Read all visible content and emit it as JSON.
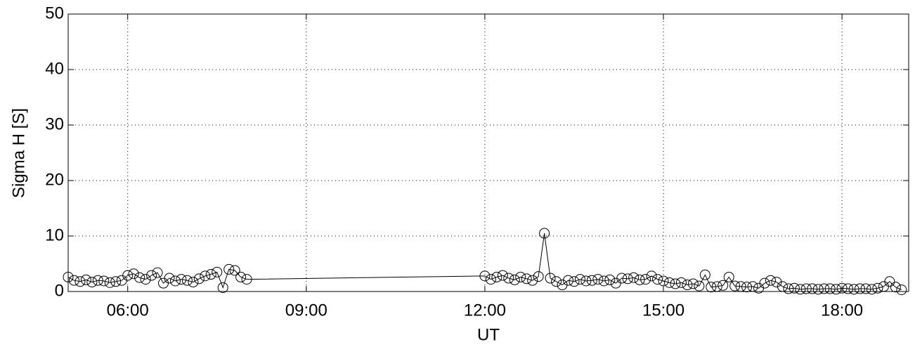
{
  "chart_data": {
    "type": "line",
    "xlabel": "UT",
    "ylabel": "Sigma H [S]",
    "x": [
      5.0,
      5.1,
      5.2,
      5.3,
      5.4,
      5.5,
      5.6,
      5.7,
      5.8,
      5.9,
      6.0,
      6.1,
      6.2,
      6.3,
      6.4,
      6.5,
      6.6,
      6.7,
      6.8,
      6.9,
      7.0,
      7.1,
      7.2,
      7.3,
      7.4,
      7.5,
      7.6,
      7.7,
      7.8,
      7.9,
      8.0,
      12.0,
      12.1,
      12.2,
      12.3,
      12.4,
      12.5,
      12.6,
      12.7,
      12.8,
      12.9,
      13.0,
      13.1,
      13.2,
      13.3,
      13.4,
      13.5,
      13.6,
      13.7,
      13.8,
      13.9,
      14.0,
      14.1,
      14.2,
      14.3,
      14.4,
      14.5,
      14.6,
      14.7,
      14.8,
      14.9,
      15.0,
      15.1,
      15.2,
      15.3,
      15.4,
      15.5,
      15.6,
      15.7,
      15.8,
      15.9,
      16.0,
      16.1,
      16.2,
      16.3,
      16.4,
      16.5,
      16.6,
      16.7,
      16.8,
      16.9,
      17.0,
      17.1,
      17.2,
      17.3,
      17.4,
      17.5,
      17.6,
      17.7,
      17.8,
      17.9,
      18.0,
      18.1,
      18.2,
      18.3,
      18.4,
      18.5,
      18.6,
      18.7,
      18.8,
      18.9,
      19.0
    ],
    "series": [
      {
        "color": "#000000",
        "marker": "circle",
        "values": [
          2.6,
          2.0,
          1.8,
          2.1,
          1.7,
          2.0,
          1.9,
          1.6,
          1.8,
          2.0,
          2.9,
          3.2,
          2.5,
          2.2,
          2.9,
          3.4,
          1.5,
          2.4,
          1.9,
          2.2,
          2.0,
          1.7,
          2.3,
          2.8,
          3.1,
          3.5,
          0.7,
          4.0,
          3.8,
          2.6,
          2.2,
          2.8,
          2.2,
          2.6,
          2.9,
          2.4,
          2.1,
          2.6,
          2.3,
          2.0,
          2.7,
          10.5,
          2.4,
          1.8,
          1.2,
          2.0,
          1.8,
          2.2,
          1.9,
          2.0,
          2.2,
          1.9,
          2.1,
          1.5,
          2.4,
          2.3,
          2.5,
          2.1,
          2.2,
          2.8,
          2.2,
          1.9,
          1.6,
          1.4,
          1.6,
          1.2,
          1.4,
          1.0,
          3.0,
          0.8,
          0.9,
          1.1,
          2.6,
          1.0,
          0.9,
          0.8,
          0.9,
          0.6,
          1.5,
          2.0,
          1.7,
          0.9,
          0.5,
          0.6,
          0.4,
          0.5,
          0.5,
          0.4,
          0.5,
          0.5,
          0.4,
          0.6,
          0.5,
          0.4,
          0.5,
          0.5,
          0.4,
          0.6,
          0.9,
          1.8,
          0.8,
          0.3
        ]
      }
    ],
    "xlim": [
      5.0,
      19.12
    ],
    "xticks": [
      {
        "value": 6,
        "label": "06:00"
      },
      {
        "value": 9,
        "label": "09:00"
      },
      {
        "value": 12,
        "label": "12:00"
      },
      {
        "value": 15,
        "label": "15:00"
      },
      {
        "value": 18,
        "label": "18:00"
      }
    ],
    "ylim": [
      0,
      50
    ],
    "yticks": [
      0,
      10,
      20,
      30,
      40,
      50
    ],
    "grid": true
  }
}
